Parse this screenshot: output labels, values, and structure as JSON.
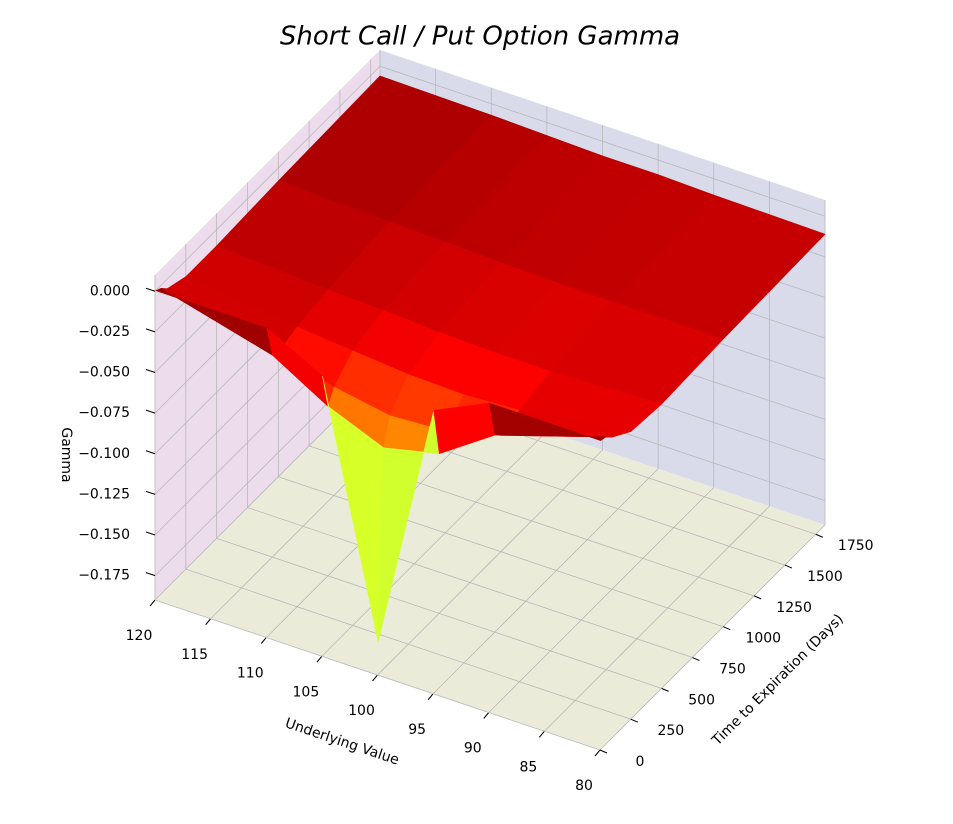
{
  "chart_data": {
    "type": "surface",
    "title": "Short Call / Put Option Gamma",
    "xlabel": "Underlying Value",
    "ylabel": "Time to Expiration (Days)",
    "zlabel": "Gamma",
    "x": [
      80,
      90,
      95,
      100,
      105,
      110,
      120
    ],
    "y": [
      5,
      50,
      100,
      250,
      500,
      1000,
      1825
    ],
    "z": [
      [
        0,
        0,
        -0.016,
        -0.17,
        -0.018,
        0,
        0
      ],
      [
        -0.001,
        -0.023,
        -0.046,
        -0.054,
        -0.04,
        -0.02,
        -0.002
      ],
      [
        -0.005,
        -0.027,
        -0.036,
        -0.038,
        -0.032,
        -0.022,
        -0.006
      ],
      [
        -0.013,
        -0.023,
        -0.025,
        -0.024,
        -0.021,
        -0.018,
        -0.01
      ],
      [
        -0.015,
        -0.018,
        -0.018,
        -0.017,
        -0.015,
        -0.014,
        -0.01
      ],
      [
        -0.013,
        -0.013,
        -0.013,
        -0.012,
        -0.011,
        -0.01,
        -0.008
      ],
      [
        -0.011,
        -0.01,
        -0.009,
        -0.009,
        -0.008,
        -0.007,
        -0.006
      ]
    ],
    "xlim": [
      80,
      120
    ],
    "ylim": [
      0,
      1825
    ],
    "zlim": [
      -0.19,
      0.01
    ],
    "xticks": [
      80,
      85,
      90,
      95,
      100,
      105,
      110,
      115,
      120
    ],
    "yticks": [
      0,
      250,
      500,
      750,
      1000,
      1250,
      1500,
      1750
    ],
    "zticks": [
      {
        "value": 0,
        "label": "0.000"
      },
      {
        "value": -0.025,
        "label": "−0.025"
      },
      {
        "value": -0.05,
        "label": "−0.050"
      },
      {
        "value": -0.075,
        "label": "−0.075"
      },
      {
        "value": -0.1,
        "label": "−0.100"
      },
      {
        "value": -0.125,
        "label": "−0.125"
      },
      {
        "value": -0.15,
        "label": "−0.150"
      },
      {
        "value": -0.175,
        "label": "−0.175"
      }
    ],
    "colormap": "jet",
    "grid": true
  }
}
